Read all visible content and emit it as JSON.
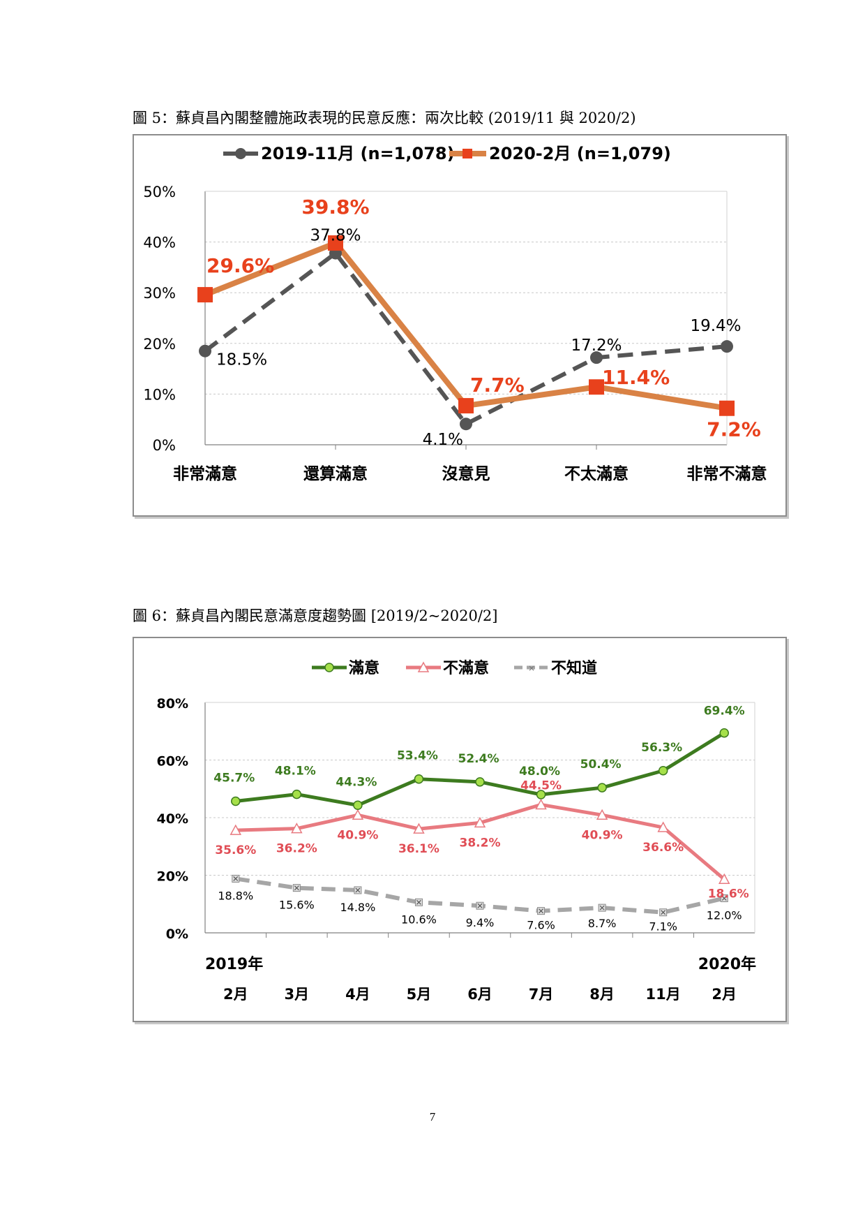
{
  "page": {
    "number": "7"
  },
  "figure5": {
    "caption": "圖 5：蘇貞昌內閣整體施政表現的民意反應：兩次比較 (2019/11 與 2020/2)",
    "colors": {
      "s2019": "#555555",
      "s2020": "#d98245",
      "marker2020": "#e8411c",
      "label2020": "#e8411c"
    }
  },
  "figure6": {
    "caption": "圖 6：蘇貞昌內閣民意滿意度趨勢圖 [2019/2~2020/2]",
    "colors": {
      "satisfied": "#3d7b1f",
      "satisfied_marker": "#a6e04a",
      "dissatisfied": "#e87a80",
      "dissatisfied_label": "#e04d55",
      "unknown": "#a6a6a6"
    }
  },
  "chart_data": [
    {
      "type": "line",
      "categories": [
        "非常滿意",
        "還算滿意",
        "沒意見",
        "不太滿意",
        "非常不滿意"
      ],
      "ylim": [
        0,
        50
      ],
      "yticks": [
        "0%",
        "10%",
        "20%",
        "30%",
        "40%",
        "50%"
      ],
      "grid": true,
      "legend_position": "top",
      "series": [
        {
          "name": "2019-11月 (n=1,078)",
          "values": [
            18.5,
            37.8,
            4.1,
            17.2,
            19.4
          ],
          "labels": [
            "18.5%",
            "37.8%",
            "4.1%",
            "17.2%",
            "19.4%"
          ],
          "style": "dashed",
          "marker": "circle"
        },
        {
          "name": "2020-2月 (n=1,079)",
          "values": [
            29.6,
            39.8,
            7.7,
            11.4,
            7.2
          ],
          "labels": [
            "29.6%",
            "39.8%",
            "7.7%",
            "11.4%",
            "7.2%"
          ],
          "style": "solid",
          "marker": "square"
        }
      ]
    },
    {
      "type": "line",
      "categories": [
        "2月",
        "3月",
        "4月",
        "5月",
        "6月",
        "7月",
        "8月",
        "11月",
        "2月"
      ],
      "year_labels": [
        "2019年",
        "2020年"
      ],
      "ylim": [
        0,
        80
      ],
      "yticks": [
        "0%",
        "20%",
        "40%",
        "60%",
        "80%"
      ],
      "grid": true,
      "legend_position": "top",
      "series": [
        {
          "name": "滿意",
          "values": [
            45.7,
            48.1,
            44.3,
            53.4,
            52.4,
            48.0,
            50.4,
            56.3,
            69.4
          ],
          "labels": [
            "45.7%",
            "48.1%",
            "44.3%",
            "53.4%",
            "52.4%",
            "48.0%",
            "50.4%",
            "56.3%",
            "69.4%"
          ],
          "style": "solid",
          "marker": "circle"
        },
        {
          "name": "不滿意",
          "values": [
            35.6,
            36.2,
            40.9,
            36.1,
            38.2,
            44.5,
            40.9,
            36.6,
            18.6
          ],
          "labels": [
            "35.6%",
            "36.2%",
            "40.9%",
            "36.1%",
            "38.2%",
            "44.5%",
            "40.9%",
            "36.6%",
            "18.6%"
          ],
          "style": "solid",
          "marker": "triangle"
        },
        {
          "name": "不知道",
          "values": [
            18.8,
            15.6,
            14.8,
            10.6,
            9.4,
            7.6,
            8.7,
            7.1,
            12.0
          ],
          "labels": [
            "18.8%",
            "15.6%",
            "14.8%",
            "10.6%",
            "9.4%",
            "7.6%",
            "8.7%",
            "7.1%",
            "12.0%"
          ],
          "style": "dashed",
          "marker": "x"
        }
      ]
    }
  ]
}
